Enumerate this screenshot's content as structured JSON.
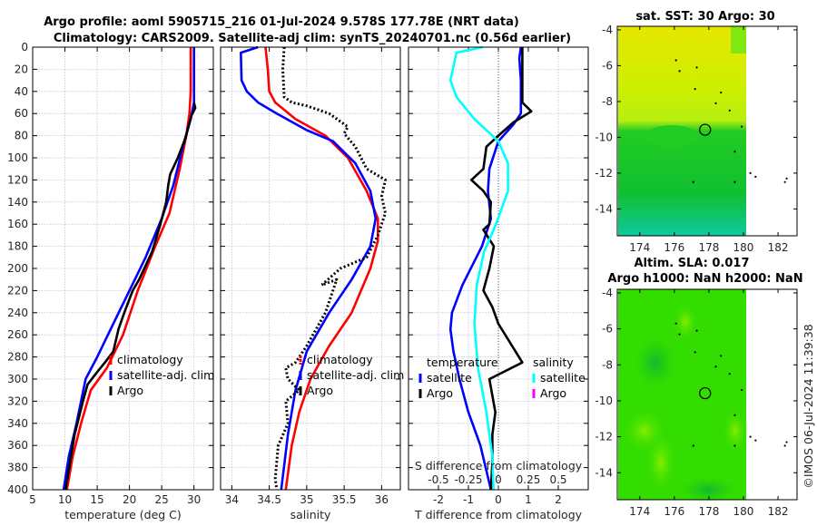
{
  "chart_data": [
    {
      "type": "line",
      "title": "Argo profile: aoml 5905715_216 01-Jul-2024 9.578S 177.78E (NRT data)",
      "subtitle": "Climatology: CARS2009. Satellite-adj clim: synTS_20240701.nc (0.56d earlier)",
      "xlabel": "temperature (deg C)",
      "ylabel": "",
      "xlim": [
        5,
        33
      ],
      "ylim": [
        400,
        0
      ],
      "xticks": [
        "5",
        "10",
        "15",
        "20",
        "25",
        "30"
      ],
      "yticks": [
        "0",
        "20",
        "40",
        "60",
        "80",
        "100",
        "120",
        "140",
        "160",
        "180",
        "200",
        "220",
        "240",
        "260",
        "280",
        "300",
        "320",
        "340",
        "360",
        "380",
        "400"
      ],
      "grid": true,
      "legend": {
        "placement": "center-right",
        "entries": [
          "climatology",
          "satellite-adj. clim",
          "Argo"
        ]
      },
      "series": [
        {
          "name": "climatology",
          "color": "#ff0000",
          "style": "solid",
          "points": [
            [
              29.5,
              0
            ],
            [
              29.5,
              40
            ],
            [
              29.3,
              60
            ],
            [
              28.8,
              80
            ],
            [
              27.8,
              110
            ],
            [
              26.2,
              150
            ],
            [
              24.0,
              180
            ],
            [
              21.3,
              220
            ],
            [
              19.0,
              260
            ],
            [
              16.5,
              290
            ],
            [
              14.0,
              310
            ],
            [
              12.5,
              340
            ],
            [
              11.2,
              370
            ],
            [
              10.3,
              400
            ]
          ]
        },
        {
          "name": "satellite-adj. clim",
          "color": "#0000ff",
          "style": "solid",
          "points": [
            [
              30.0,
              0
            ],
            [
              30.0,
              50
            ],
            [
              29.5,
              65
            ],
            [
              28.5,
              85
            ],
            [
              26.8,
              125
            ],
            [
              25.0,
              155
            ],
            [
              22.5,
              190
            ],
            [
              20.0,
              220
            ],
            [
              17.5,
              250
            ],
            [
              15.0,
              280
            ],
            [
              13.2,
              300
            ],
            [
              11.8,
              340
            ],
            [
              10.6,
              370
            ],
            [
              9.8,
              400
            ]
          ]
        },
        {
          "name": "Argo",
          "color": "#000000",
          "style": "solid",
          "points": [
            [
              30.0,
              50
            ],
            [
              30.2,
              55
            ],
            [
              29.6,
              62
            ],
            [
              28.7,
              82
            ],
            [
              27.5,
              100
            ],
            [
              26.3,
              115
            ],
            [
              26.0,
              125
            ],
            [
              25.7,
              140
            ],
            [
              24.8,
              160
            ],
            [
              23.5,
              185
            ],
            [
              21.5,
              210
            ],
            [
              20.5,
              220
            ],
            [
              19.2,
              240
            ],
            [
              18.3,
              255
            ],
            [
              17.5,
              275
            ],
            [
              16.2,
              285
            ],
            [
              14.8,
              295
            ],
            [
              13.5,
              305
            ],
            [
              12.8,
              320
            ],
            [
              11.5,
              350
            ],
            [
              10.8,
              375
            ],
            [
              10.1,
              400
            ]
          ]
        }
      ]
    },
    {
      "type": "line",
      "xlabel": "salinity",
      "xlim": [
        33.85,
        36.25
      ],
      "ylim": [
        400,
        0
      ],
      "xticks": [
        "34",
        "34.5",
        "35",
        "35.5",
        "36"
      ],
      "grid": true,
      "legend": {
        "placement": "center-right",
        "entries": [
          "climatology",
          "satellite-adj. clim",
          "Argo"
        ]
      },
      "series": [
        {
          "name": "climatology",
          "color": "#ff0000",
          "style": "solid",
          "points": [
            [
              34.45,
              0
            ],
            [
              34.48,
              20
            ],
            [
              34.5,
              40
            ],
            [
              34.58,
              50
            ],
            [
              34.85,
              65
            ],
            [
              35.25,
              80
            ],
            [
              35.55,
              100
            ],
            [
              35.8,
              130
            ],
            [
              35.95,
              155
            ],
            [
              35.95,
              175
            ],
            [
              35.85,
              200
            ],
            [
              35.6,
              240
            ],
            [
              35.3,
              270
            ],
            [
              35.05,
              300
            ],
            [
              34.9,
              330
            ],
            [
              34.8,
              360
            ],
            [
              34.72,
              400
            ]
          ]
        },
        {
          "name": "satellite-adj. clim",
          "color": "#0000ff",
          "style": "solid",
          "points": [
            [
              34.35,
              0
            ],
            [
              34.12,
              5
            ],
            [
              34.13,
              30
            ],
            [
              34.2,
              40
            ],
            [
              34.35,
              50
            ],
            [
              34.6,
              60
            ],
            [
              35.0,
              75
            ],
            [
              35.35,
              85
            ],
            [
              35.65,
              105
            ],
            [
              35.85,
              130
            ],
            [
              35.92,
              155
            ],
            [
              35.85,
              180
            ],
            [
              35.6,
              210
            ],
            [
              35.3,
              240
            ],
            [
              35.0,
              275
            ],
            [
              34.85,
              310
            ],
            [
              34.75,
              350
            ],
            [
              34.66,
              400
            ]
          ]
        },
        {
          "name": "Argo",
          "color": "#000000",
          "style": "dotted",
          "points": [
            [
              34.7,
              0
            ],
            [
              34.68,
              20
            ],
            [
              34.7,
              45
            ],
            [
              34.8,
              50
            ],
            [
              35.0,
              53
            ],
            [
              35.3,
              60
            ],
            [
              35.55,
              72
            ],
            [
              35.5,
              78
            ],
            [
              35.65,
              90
            ],
            [
              35.8,
              110
            ],
            [
              36.05,
              120
            ],
            [
              36.0,
              135
            ],
            [
              36.05,
              150
            ],
            [
              35.95,
              170
            ],
            [
              35.8,
              190
            ],
            [
              35.45,
              200
            ],
            [
              35.2,
              215
            ],
            [
              35.4,
              210
            ],
            [
              35.25,
              240
            ],
            [
              35.0,
              270
            ],
            [
              34.85,
              285
            ],
            [
              34.72,
              290
            ],
            [
              34.75,
              300
            ],
            [
              34.9,
              310
            ],
            [
              34.72,
              320
            ],
            [
              34.75,
              340
            ],
            [
              34.62,
              360
            ],
            [
              34.58,
              390
            ],
            [
              34.6,
              400
            ]
          ]
        }
      ]
    },
    {
      "type": "line",
      "xlabel": "T difference from climatology",
      "xlabel_secondary": "S difference from climatology",
      "xlim": [
        -3,
        3
      ],
      "xlim_secondary": [
        -0.75,
        0.75
      ],
      "ylim": [
        400,
        0
      ],
      "xticks": [
        "-2",
        "-1",
        "0",
        "1",
        "2"
      ],
      "xticks_secondary": [
        "-0.5",
        "-0.25",
        "0",
        "0.25",
        "0.5"
      ],
      "grid": true,
      "legend": {
        "placement": "center",
        "groups": [
          {
            "title": "temperature",
            "entries": [
              "satellite",
              "Argo"
            ]
          },
          {
            "title": "salinity",
            "entries": [
              "satellite",
              "Argo"
            ]
          }
        ]
      },
      "series": [
        {
          "name": "temperature satellite",
          "color": "#0000ff",
          "style": "solid",
          "axis": "T",
          "points": [
            [
              0.75,
              0
            ],
            [
              0.7,
              10
            ],
            [
              0.75,
              30
            ],
            [
              0.75,
              60
            ],
            [
              0.5,
              70
            ],
            [
              0.0,
              85
            ],
            [
              -0.3,
              110
            ],
            [
              -0.35,
              130
            ],
            [
              -0.25,
              155
            ],
            [
              -0.55,
              180
            ],
            [
              -1.2,
              215
            ],
            [
              -1.55,
              240
            ],
            [
              -1.6,
              255
            ],
            [
              -1.5,
              275
            ],
            [
              -1.3,
              300
            ],
            [
              -1.0,
              330
            ],
            [
              -0.6,
              360
            ],
            [
              -0.25,
              400
            ]
          ]
        },
        {
          "name": "temperature Argo",
          "color": "#000000",
          "style": "solid",
          "axis": "T",
          "points": [
            [
              0.8,
              0
            ],
            [
              0.8,
              50
            ],
            [
              1.1,
              58
            ],
            [
              0.5,
              68
            ],
            [
              0.0,
              80
            ],
            [
              -0.4,
              90
            ],
            [
              -0.5,
              110
            ],
            [
              -0.9,
              120
            ],
            [
              -0.5,
              130
            ],
            [
              -0.25,
              140
            ],
            [
              -0.3,
              160
            ],
            [
              -0.5,
              165
            ],
            [
              -0.15,
              180
            ],
            [
              -0.3,
              200
            ],
            [
              -0.5,
              220
            ],
            [
              -0.2,
              235
            ],
            [
              0.0,
              250
            ],
            [
              0.8,
              285
            ],
            [
              -0.3,
              300
            ],
            [
              -0.1,
              330
            ],
            [
              -0.2,
              350
            ],
            [
              -0.2,
              375
            ],
            [
              -0.25,
              400
            ]
          ]
        },
        {
          "name": "salinity satellite",
          "color": "#00ffff",
          "style": "solid",
          "axis": "S",
          "points": [
            [
              -0.13,
              0
            ],
            [
              -0.35,
              5
            ],
            [
              -0.4,
              30
            ],
            [
              -0.35,
              45
            ],
            [
              -0.2,
              65
            ],
            [
              0.0,
              85
            ],
            [
              0.08,
              105
            ],
            [
              0.08,
              130
            ],
            [
              -0.02,
              160
            ],
            [
              -0.12,
              185
            ],
            [
              -0.18,
              215
            ],
            [
              -0.2,
              250
            ],
            [
              -0.17,
              290
            ],
            [
              -0.1,
              330
            ],
            [
              -0.05,
              370
            ],
            [
              -0.04,
              400
            ]
          ]
        },
        {
          "name": "salinity Argo",
          "color": "#ff00ff",
          "style": "solid",
          "axis": "S",
          "points": []
        }
      ]
    },
    {
      "type": "heatmap",
      "title": "sat. SST: 30 Argo: 30",
      "xlim": [
        172.7,
        183.1
      ],
      "ylim": [
        -15.5,
        -3.8
      ],
      "xticks": [
        "174",
        "176",
        "178",
        "180",
        "182"
      ],
      "yticks": [
        "-4",
        "-6",
        "-8",
        "-10",
        "-12",
        "-14"
      ],
      "marker": {
        "lon": 177.78,
        "lat": -9.578
      }
    },
    {
      "type": "heatmap",
      "title": "Altim. SLA: 0.017",
      "subtitle": "Argo h1000: NaN h2000: NaN",
      "xlim": [
        172.7,
        183.1
      ],
      "ylim": [
        -15.5,
        -3.8
      ],
      "xticks": [
        "174",
        "176",
        "178",
        "180",
        "182"
      ],
      "yticks": [
        "-4",
        "-6",
        "-8",
        "-10",
        "-12",
        "-14"
      ],
      "marker": {
        "lon": 177.78,
        "lat": -9.578
      }
    }
  ],
  "footer": {
    "credit": "©IMOS 06-Jul-2024 11:39:38"
  }
}
